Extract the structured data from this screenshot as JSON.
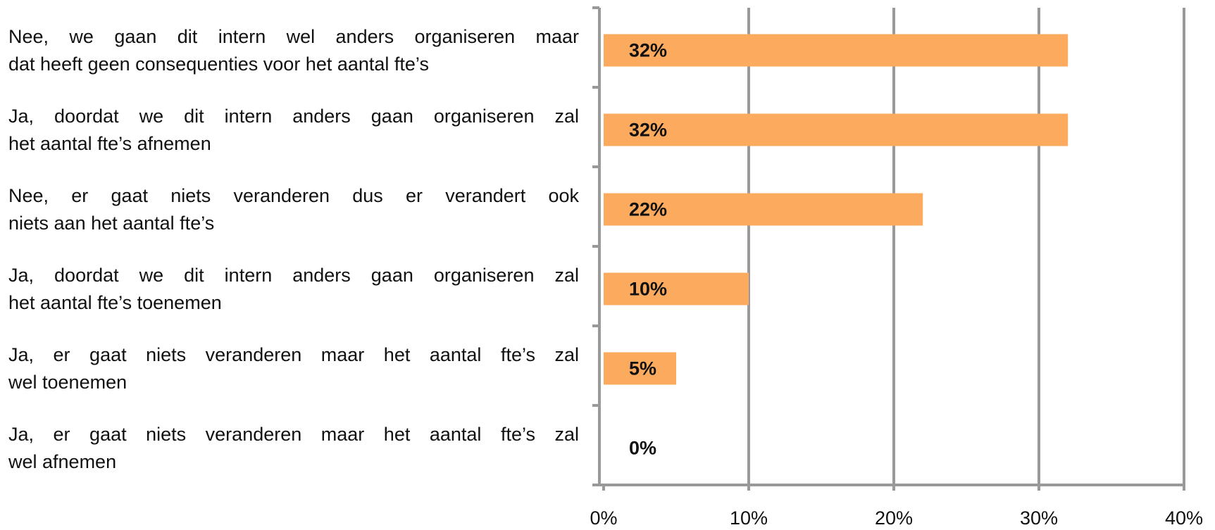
{
  "chart_data": {
    "type": "barh",
    "categories": [
      [
        "Nee, we gaan dit intern wel anders organiseren maar",
        "dat heeft geen consequenties voor het aantal fte’s"
      ],
      [
        "Ja, doordat we dit intern anders gaan organiseren zal",
        "het aantal fte’s afnemen"
      ],
      [
        "Nee, er gaat niets veranderen dus er verandert ook",
        "niets aan het aantal fte’s"
      ],
      [
        "Ja, doordat we dit intern anders gaan organiseren zal",
        "het aantal fte’s toenemen"
      ],
      [
        "Ja, er gaat niets veranderen maar het aantal fte’s zal",
        "wel toenemen"
      ],
      [
        "Ja, er gaat niets veranderen maar het aantal fte’s zal",
        "wel afnemen"
      ]
    ],
    "values": [
      32,
      32,
      22,
      10,
      5,
      0
    ],
    "value_labels": [
      "32%",
      "32%",
      "22%",
      "10%",
      "5%",
      "0%"
    ],
    "color": "#fbaa5e",
    "xlim": [
      0,
      40
    ],
    "xticks": [
      {
        "value": 0,
        "label": "0%"
      },
      {
        "value": 10,
        "label": "10%"
      },
      {
        "value": 20,
        "label": "20%"
      },
      {
        "value": 30,
        "label": "30%"
      },
      {
        "value": 40,
        "label": "40%"
      }
    ],
    "grid": true
  }
}
